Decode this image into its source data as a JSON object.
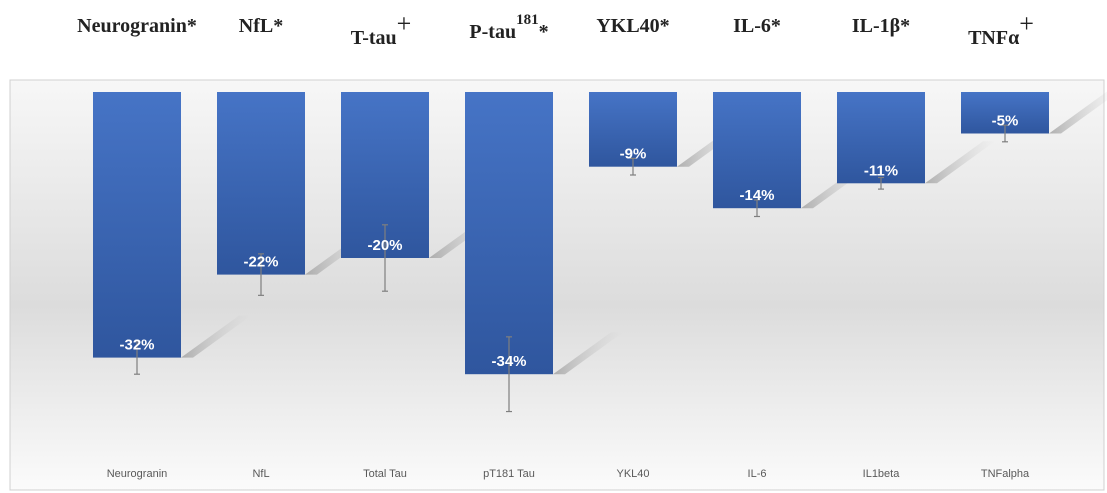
{
  "chart_data": {
    "type": "bar",
    "categories": [
      "Neurogranin",
      "NfL",
      "Total Tau",
      "pT181 Tau",
      "YKL40",
      "IL-6",
      "IL1beta",
      "TNFalpha"
    ],
    "values": [
      -32,
      -22,
      -20,
      -34,
      -9,
      -14,
      -11,
      -5
    ],
    "data_labels": [
      "-32%",
      "-22%",
      "-20%",
      "-34%",
      "-9%",
      "-14%",
      "-11%",
      "-5%"
    ],
    "error": [
      2,
      2.5,
      4,
      4.5,
      1,
      1,
      0.7,
      1
    ],
    "ylim": [
      -45,
      0
    ],
    "ylabel": "",
    "xlabel": "",
    "bar_color": "#3f69b5",
    "bar_color_dark": "#2f559c",
    "error_color": "#7f7f7f",
    "header_labels": [
      {
        "main": "Neurogranin",
        "sup": "",
        "suffix": "*"
      },
      {
        "main": "NfL",
        "sup": "",
        "suffix": "*"
      },
      {
        "main": "T-tau",
        "sup": "+",
        "suffix": ""
      },
      {
        "main": "P-tau",
        "sup": "181",
        "suffix": "*"
      },
      {
        "main": "YKL40",
        "sup": "",
        "suffix": "*"
      },
      {
        "main": "IL-6",
        "sup": "",
        "suffix": "*"
      },
      {
        "main": "IL-1β",
        "sup": "",
        "suffix": "*"
      },
      {
        "main": "TNFα",
        "sup": "+",
        "suffix": ""
      }
    ]
  }
}
